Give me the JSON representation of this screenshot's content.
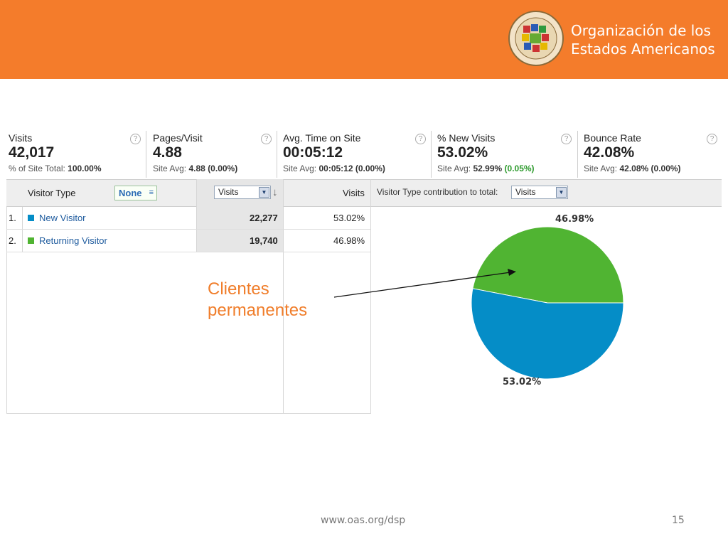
{
  "header": {
    "org_name_line1": "Organización de los",
    "org_name_line2": "Estados Americanos",
    "background_color": "#f47c2b"
  },
  "metrics": [
    {
      "label": "Visits",
      "value": "42,017",
      "sub_prefix": "% of Site Total: ",
      "sub_value": "100.00%",
      "sub_delta": ""
    },
    {
      "label": "Pages/Visit",
      "value": "4.88",
      "sub_prefix": "Site Avg: ",
      "sub_value": "4.88",
      "sub_delta": "(0.00%)"
    },
    {
      "label": "Avg. Time on Site",
      "value": "00:05:12",
      "sub_prefix": "Site Avg: ",
      "sub_value": "00:05:12",
      "sub_delta": "(0.00%)"
    },
    {
      "label": "% New Visits",
      "value": "53.02%",
      "sub_prefix": "Site Avg: ",
      "sub_value": "52.99%",
      "sub_delta": "(0.05%)"
    },
    {
      "label": "Bounce Rate",
      "value": "42.08%",
      "sub_prefix": "Site Avg: ",
      "sub_value": "42.08%",
      "sub_delta": "(0.00%)"
    }
  ],
  "help_glyph": "?",
  "table": {
    "dimension_header": "Visitor Type",
    "secondary_dimension": "None",
    "metric_select": "Visits",
    "sort_arrow": "↓",
    "percent_header": "Visits",
    "contribution_label": "Visitor Type contribution to total:",
    "contribution_select": "Visits",
    "rows": [
      {
        "index": "1.",
        "name": "New Visitor",
        "visits": "22,277",
        "percent": "53.02%",
        "color": "#058dc7"
      },
      {
        "index": "2.",
        "name": "Returning Visitor",
        "visits": "19,740",
        "percent": "46.98%",
        "color": "#50b432"
      }
    ]
  },
  "chart_data": {
    "type": "pie",
    "slices": [
      {
        "label": "46.98%",
        "value": 46.98,
        "color": "#50b432"
      },
      {
        "label": "53.02%",
        "value": 53.02,
        "color": "#058dc7"
      }
    ]
  },
  "annotation": {
    "line1": "Clientes",
    "line2": "permanentes",
    "color": "#f07d2a"
  },
  "footer": {
    "url": "www.oas.org/dsp",
    "page_number": "15"
  }
}
